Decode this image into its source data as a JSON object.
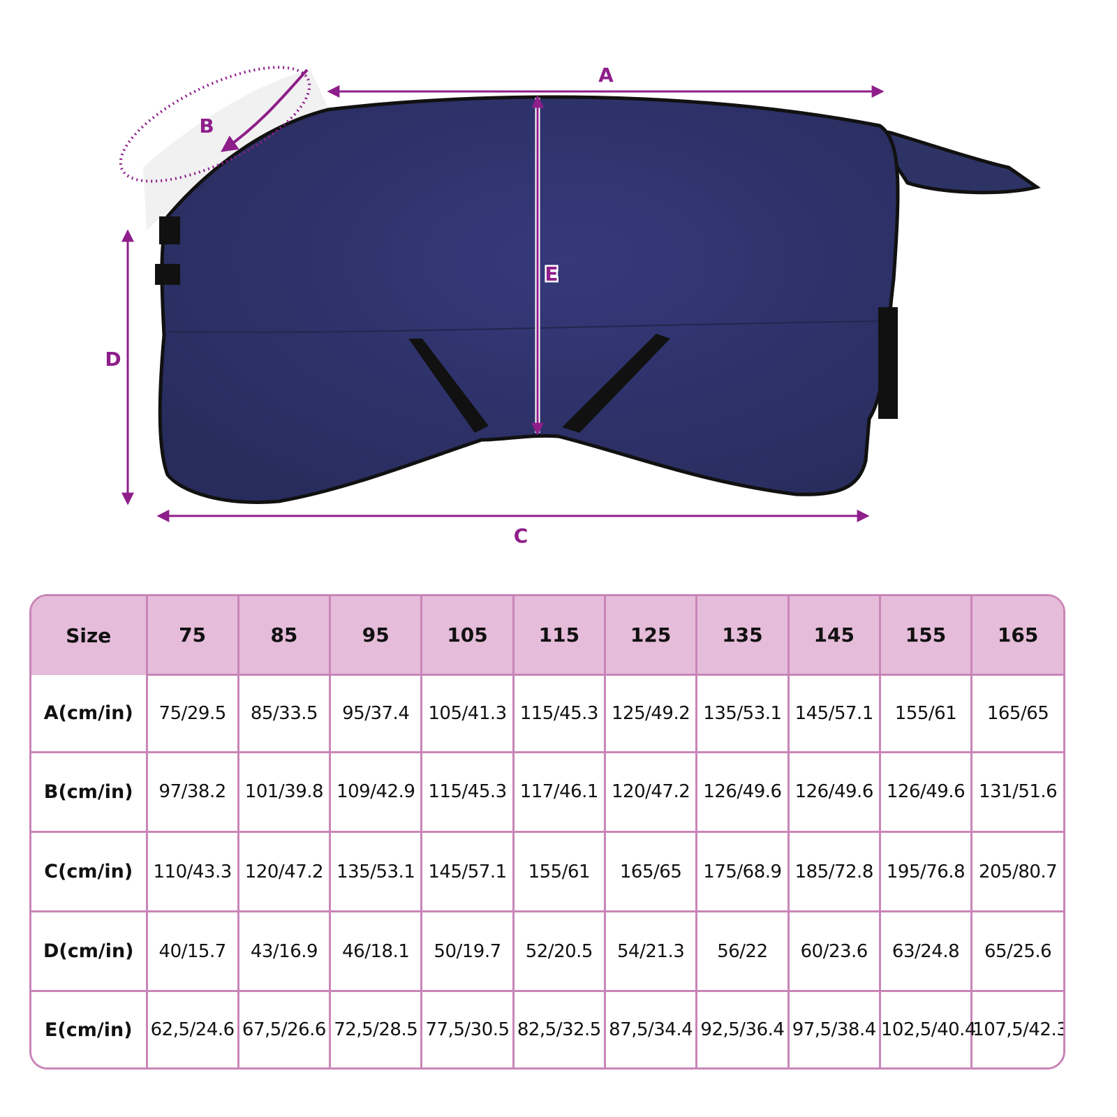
{
  "colors": {
    "accent": "#8e1e8a",
    "table_border": "#c985b8",
    "header_bg": "#e5bcd9",
    "rug": "#2e3366",
    "fleece": "#f2f2f2"
  },
  "diagram": {
    "labels": {
      "A": "A",
      "B": "B",
      "C": "C",
      "D": "D",
      "E": "E"
    }
  },
  "table": {
    "headers": [
      "Size",
      "75",
      "85",
      "95",
      "105",
      "115",
      "125",
      "135",
      "145",
      "155",
      "165"
    ],
    "rows": [
      {
        "label": "A(cm/in)",
        "values": [
          "75/29.5",
          "85/33.5",
          "95/37.4",
          "105/41.3",
          "115/45.3",
          "125/49.2",
          "135/53.1",
          "145/57.1",
          "155/61",
          "165/65"
        ]
      },
      {
        "label": "B(cm/in)",
        "values": [
          "97/38.2",
          "101/39.8",
          "109/42.9",
          "115/45.3",
          "117/46.1",
          "120/47.2",
          "126/49.6",
          "126/49.6",
          "126/49.6",
          "131/51.6"
        ]
      },
      {
        "label": "C(cm/in)",
        "values": [
          "110/43.3",
          "120/47.2",
          "135/53.1",
          "145/57.1",
          "155/61",
          "165/65",
          "175/68.9",
          "185/72.8",
          "195/76.8",
          "205/80.7"
        ]
      },
      {
        "label": "D(cm/in)",
        "values": [
          "40/15.7",
          "43/16.9",
          "46/18.1",
          "50/19.7",
          "52/20.5",
          "54/21.3",
          "56/22",
          "60/23.6",
          "63/24.8",
          "65/25.6"
        ]
      },
      {
        "label": "E(cm/in)",
        "values": [
          "62,5/24.6",
          "67,5/26.6",
          "72,5/28.5",
          "77,5/30.5",
          "82,5/32.5",
          "87,5/34.4",
          "92,5/36.4",
          "97,5/38.4",
          "102,5/40.4",
          "107,5/42.3"
        ]
      }
    ]
  }
}
